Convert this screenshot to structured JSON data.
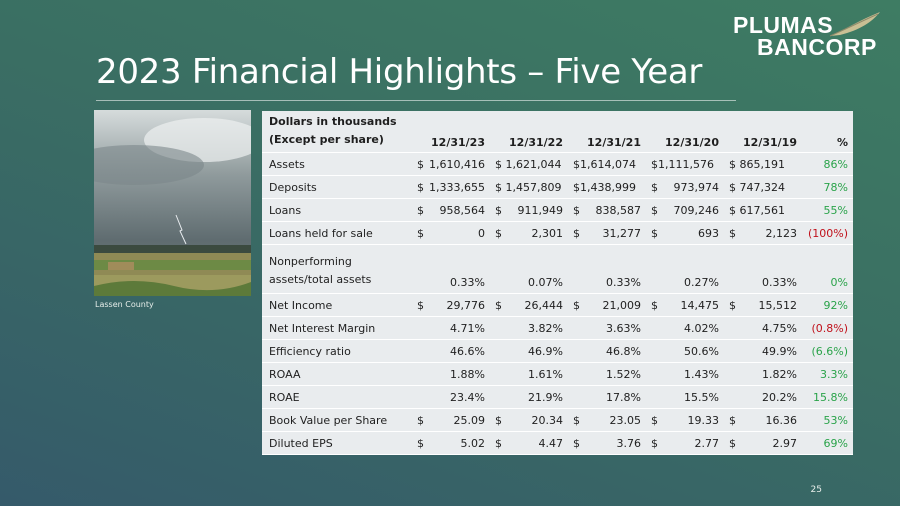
{
  "logo": {
    "line1": "PLUMAS",
    "line2": "BANCORP"
  },
  "title": "2023 Financial Highlights – Five Year",
  "photo": {
    "caption": "Lassen County"
  },
  "table": {
    "header": {
      "label_line1": "Dollars in thousands",
      "label_line2": "(Except per share)",
      "years": [
        "12/31/23",
        "12/31/22",
        "12/31/21",
        "12/31/20",
        "12/31/19"
      ],
      "pct": "%"
    },
    "rows": [
      {
        "label": "Assets",
        "cells": [
          [
            "$",
            "1,610,416"
          ],
          [
            "$ 1,621,044",
            ""
          ],
          [
            "$1,614,074",
            ""
          ],
          [
            "$1,111,576",
            ""
          ],
          [
            "$ 865,191",
            ""
          ]
        ],
        "pct": "86%",
        "sign": "pos"
      },
      {
        "label": "Deposits",
        "cells": [
          [
            "$",
            "1,333,655"
          ],
          [
            "$ 1,457,809",
            ""
          ],
          [
            "$1,438,999",
            ""
          ],
          [
            "$",
            "973,974"
          ],
          [
            "$ 747,324",
            ""
          ]
        ],
        "pct": "78%",
        "sign": "pos"
      },
      {
        "label": "Loans",
        "cells": [
          [
            "$",
            "958,564"
          ],
          [
            "$",
            "911,949"
          ],
          [
            "$",
            "838,587"
          ],
          [
            "$",
            "709,246"
          ],
          [
            "$ 617,561",
            ""
          ]
        ],
        "pct": "55%",
        "sign": "pos"
      },
      {
        "label": "Loans held for sale",
        "cells": [
          [
            "$",
            "0"
          ],
          [
            "$",
            "2,301"
          ],
          [
            "$",
            "31,277"
          ],
          [
            "$",
            "693"
          ],
          [
            "$",
            "2,123"
          ]
        ],
        "pct": "(100%)",
        "sign": "neg"
      },
      {
        "label_line1": "Nonperforming",
        "label_line2": "assets/total assets",
        "cells": [
          [
            "",
            "0.33%"
          ],
          [
            "",
            "0.07%"
          ],
          [
            "",
            "0.33%"
          ],
          [
            "",
            "0.27%"
          ],
          [
            "",
            "0.33%"
          ]
        ],
        "pct": "0%",
        "sign": "pos"
      },
      {
        "label": "Net Income",
        "cells": [
          [
            "$",
            "29,776"
          ],
          [
            "$",
            "26,444"
          ],
          [
            "$",
            "21,009"
          ],
          [
            "$",
            "14,475"
          ],
          [
            "$",
            "15,512"
          ]
        ],
        "pct": "92%",
        "sign": "pos"
      },
      {
        "label": "Net Interest Margin",
        "cells": [
          [
            "",
            "4.71%"
          ],
          [
            "",
            "3.82%"
          ],
          [
            "",
            "3.63%"
          ],
          [
            "",
            "4.02%"
          ],
          [
            "",
            "4.75%"
          ]
        ],
        "pct": "(0.8%)",
        "sign": "neg"
      },
      {
        "label": "Efficiency ratio",
        "cells": [
          [
            "",
            "46.6%"
          ],
          [
            "",
            "46.9%"
          ],
          [
            "",
            "46.8%"
          ],
          [
            "",
            "50.6%"
          ],
          [
            "",
            "49.9%"
          ]
        ],
        "pct": "(6.6%)",
        "sign": "pos"
      },
      {
        "label": "ROAA",
        "cells": [
          [
            "",
            "1.88%"
          ],
          [
            "",
            "1.61%"
          ],
          [
            "",
            "1.52%"
          ],
          [
            "",
            "1.43%"
          ],
          [
            "",
            "1.82%"
          ]
        ],
        "pct": "3.3%",
        "sign": "pos"
      },
      {
        "label": "ROAE",
        "cells": [
          [
            "",
            "23.4%"
          ],
          [
            "",
            "21.9%"
          ],
          [
            "",
            "17.8%"
          ],
          [
            "",
            "15.5%"
          ],
          [
            "",
            "20.2%"
          ]
        ],
        "pct": "15.8%",
        "sign": "pos"
      },
      {
        "label": "Book Value per Share",
        "cells": [
          [
            "$",
            "25.09"
          ],
          [
            "$",
            "20.34"
          ],
          [
            "$",
            "23.05"
          ],
          [
            "$",
            "19.33"
          ],
          [
            "$",
            "16.36"
          ]
        ],
        "pct": "53%",
        "sign": "pos"
      },
      {
        "label": "Diluted EPS",
        "cells": [
          [
            "$",
            "5.02"
          ],
          [
            "$",
            "4.47"
          ],
          [
            "$",
            "3.76"
          ],
          [
            "$",
            "2.77"
          ],
          [
            "$",
            "2.97"
          ]
        ],
        "pct": "69%",
        "sign": "pos"
      }
    ]
  },
  "page_number": "25",
  "colors": {
    "positive": "#2aa34a",
    "negative": "#c0121c",
    "table_bg": "#e9ecee"
  }
}
